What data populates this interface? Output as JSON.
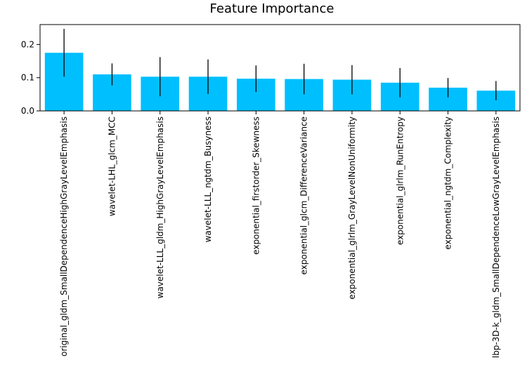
{
  "chart_data": {
    "type": "bar",
    "title": "Feature Importance",
    "xlabel": "",
    "ylabel": "",
    "ylim": [
      0,
      0.26
    ],
    "yticks": [
      0.0,
      0.1,
      0.2
    ],
    "ytick_labels": [
      "0.0",
      "0.1",
      "0.2"
    ],
    "grid": false,
    "bar_color": "#00BFFF",
    "errorbar_color": "#000000",
    "categories": [
      "original_gldm_SmallDependenceHighGrayLevelEmphasis",
      "wavelet-LHL_glcm_MCC",
      "wavelet-LLL_gldm_HighGrayLevelEmphasis",
      "wavelet-LLL_ngtdm_Busyness",
      "exponential_firstorder_Skewness",
      "exponential_glcm_DifferenceVariance",
      "exponential_glrlm_GrayLevelNonUniformity",
      "exponential_glrlm_RunEntropy",
      "exponential_ngtdm_Complexity",
      "lbp-3D-k_gldm_SmallDependenceLowGrayLevelEmphasis"
    ],
    "values": [
      0.175,
      0.11,
      0.103,
      0.103,
      0.097,
      0.096,
      0.094,
      0.085,
      0.07,
      0.061
    ],
    "errors": [
      0.072,
      0.033,
      0.059,
      0.052,
      0.04,
      0.046,
      0.044,
      0.044,
      0.029,
      0.029
    ]
  }
}
